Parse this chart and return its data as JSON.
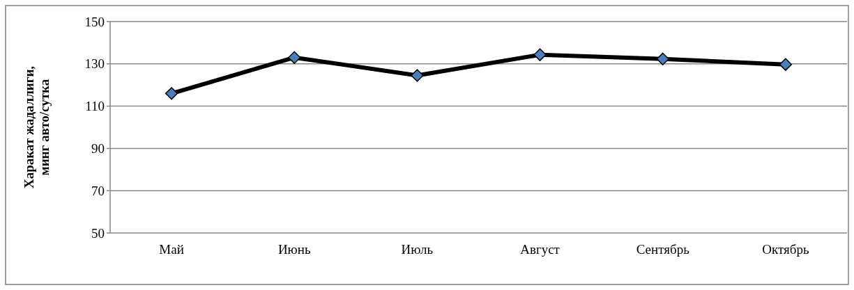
{
  "chart_data": {
    "type": "line",
    "ylabel": "Харакат жадаллиги,\nминг авто/сутка",
    "categories": [
      "Май",
      "Июнь",
      "Июль",
      "Август",
      "Сентябрь",
      "Октябрь"
    ],
    "series": [
      {
        "color": "#000000",
        "values": [
          116,
          133,
          124.5,
          134.3,
          132.3,
          129.7
        ]
      }
    ],
    "ylim": [
      50,
      150
    ],
    "yticks": [
      50,
      70,
      90,
      110,
      130,
      150
    ],
    "grid": "y",
    "marker": "diamond",
    "line_style": "solid"
  }
}
